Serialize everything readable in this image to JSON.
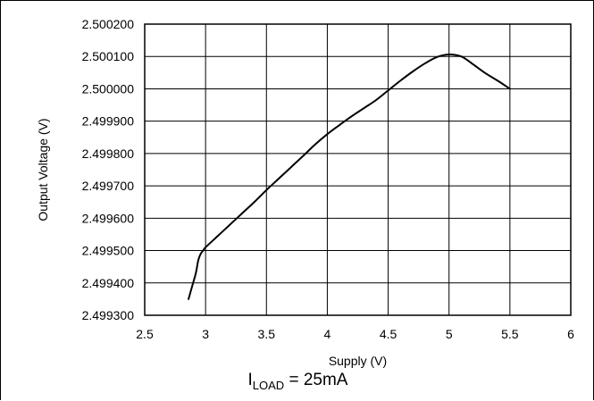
{
  "chart_data": {
    "type": "line",
    "xlabel": "Supply (V)",
    "ylabel": "Output Voltage (V)",
    "xlim": [
      2.5,
      6
    ],
    "ylim": [
      2.4993,
      2.5002
    ],
    "xticks": [
      2.5,
      3,
      3.5,
      4,
      4.5,
      5,
      5.5,
      6
    ],
    "yticks": [
      2.4993,
      2.4994,
      2.4995,
      2.4996,
      2.4997,
      2.4998,
      2.4999,
      2.5,
      2.5001,
      2.5002
    ],
    "xtick_labels": [
      "2.5",
      "3",
      "3.5",
      "4",
      "4.5",
      "5",
      "5.5",
      "6"
    ],
    "ytick_labels": [
      "2.499300",
      "2.499400",
      "2.499500",
      "2.499600",
      "2.499700",
      "2.499800",
      "2.499900",
      "2.500000",
      "2.500100",
      "2.500200"
    ],
    "grid": true,
    "series": [
      {
        "x": [
          2.86,
          2.89,
          2.92,
          2.94,
          2.96,
          2.98,
          3.0,
          3.1,
          3.2,
          3.3,
          3.4,
          3.5,
          3.6,
          3.7,
          3.8,
          3.9,
          4.0,
          4.1,
          4.2,
          4.3,
          4.4,
          4.5,
          4.6,
          4.7,
          4.8,
          4.9,
          5.0,
          5.1,
          5.2,
          5.3,
          5.4,
          5.5
        ],
        "y": [
          2.49935,
          2.49939,
          2.49943,
          2.49947,
          2.49949,
          2.4995,
          2.49951,
          2.499545,
          2.49958,
          2.499615,
          2.49965,
          2.499687,
          2.499722,
          2.499757,
          2.499792,
          2.499828,
          2.49986,
          2.499888,
          2.499915,
          2.49994,
          2.499965,
          2.499995,
          2.500025,
          2.500053,
          2.500078,
          2.500098,
          2.500106,
          2.5001,
          2.500075,
          2.500048,
          2.500025,
          2.5
        ]
      }
    ],
    "caption": {
      "main": "I",
      "sub": "LOAD",
      "rest": " = 25mA"
    }
  }
}
